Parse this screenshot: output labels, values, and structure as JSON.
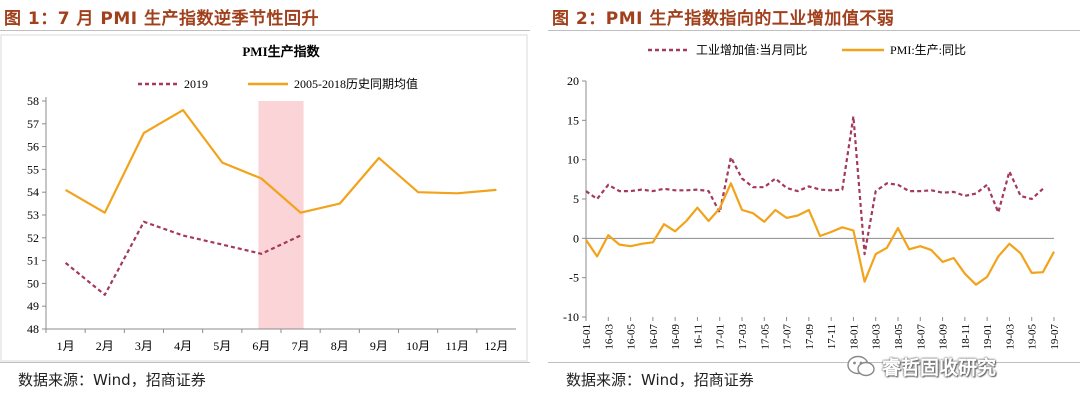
{
  "left": {
    "figure_title": "图 1：7 月 PMI 生产指数逆季节性回升",
    "source": "数据来源：Wind，招商证券"
  },
  "right": {
    "figure_title": "图 2：PMI 生产指数指向的工业增加值不弱",
    "source": "数据来源：Wind，招商证券"
  },
  "watermark": {
    "text": "睿哲固收研究",
    "icon": "wechat-icon"
  },
  "chart_data": [
    {
      "type": "line",
      "title": "PMI生产指数",
      "categories": [
        "1月",
        "2月",
        "3月",
        "4月",
        "5月",
        "6月",
        "7月",
        "8月",
        "9月",
        "10月",
        "11月",
        "12月"
      ],
      "ylim": [
        48,
        58
      ],
      "yticks": [
        "48",
        "49",
        "50",
        "51",
        "52",
        "53",
        "54",
        "55",
        "56",
        "57",
        "58"
      ],
      "grid": false,
      "legend": "top",
      "highlight_band": {
        "from": "6月",
        "to": "7月",
        "color": "#fbd4d8"
      },
      "series": [
        {
          "name": "2019",
          "color": "#a33a5a",
          "style": "dashed",
          "values": [
            50.9,
            49.5,
            52.7,
            52.1,
            51.7,
            51.3,
            52.1,
            null,
            null,
            null,
            null,
            null
          ]
        },
        {
          "name": "2005-2018历史同期均值",
          "color": "#f2a31b",
          "style": "solid",
          "values": [
            54.1,
            53.1,
            56.6,
            57.6,
            55.3,
            54.6,
            53.1,
            53.5,
            55.5,
            54.0,
            53.95,
            54.1
          ]
        }
      ]
    },
    {
      "type": "line",
      "title": "",
      "categories": [
        "16-01",
        "16-02",
        "16-03",
        "16-04",
        "16-05",
        "16-06",
        "16-07",
        "16-08",
        "16-09",
        "16-10",
        "16-11",
        "16-12",
        "17-01",
        "17-02",
        "17-03",
        "17-04",
        "17-05",
        "17-06",
        "17-07",
        "17-08",
        "17-09",
        "17-10",
        "17-11",
        "17-12",
        "18-01",
        "18-02",
        "18-03",
        "18-04",
        "18-05",
        "18-06",
        "18-07",
        "18-08",
        "18-09",
        "18-10",
        "18-11",
        "18-12",
        "19-01",
        "19-02",
        "19-03",
        "19-04",
        "19-05",
        "19-06",
        "19-07"
      ],
      "xtick_labels": [
        "16-01",
        "16-03",
        "16-05",
        "16-07",
        "16-09",
        "16-11",
        "17-01",
        "17-03",
        "17-05",
        "17-07",
        "17-09",
        "17-11",
        "18-01",
        "18-03",
        "18-05",
        "18-07",
        "18-09",
        "18-11",
        "19-01",
        "19-03",
        "19-05",
        "19-07"
      ],
      "ylim": [
        -10,
        20
      ],
      "yticks": [
        "-10",
        "-5",
        "0",
        "5",
        "10",
        "15",
        "20"
      ],
      "grid": false,
      "legend": "top",
      "series": [
        {
          "name": "工业增加值:当月同比",
          "color": "#a33a5a",
          "style": "dashed",
          "values": [
            6.0,
            5.0,
            6.8,
            6.0,
            6.0,
            6.2,
            6.0,
            6.3,
            6.1,
            6.1,
            6.2,
            6.0,
            3.3,
            10.3,
            7.6,
            6.5,
            6.5,
            7.6,
            6.4,
            6.0,
            6.6,
            6.2,
            6.1,
            6.2,
            15.5,
            -2.0,
            6.0,
            7.0,
            6.8,
            6.0,
            6.0,
            6.1,
            5.8,
            5.9,
            5.4,
            5.7,
            6.8,
            3.3,
            8.5,
            5.4,
            5.0,
            6.3,
            null
          ]
        },
        {
          "name": "PMI:生产:同比",
          "color": "#f2a31b",
          "style": "solid",
          "values": [
            -0.2,
            -2.3,
            0.4,
            -0.8,
            -1.0,
            -0.7,
            -0.5,
            1.8,
            0.9,
            2.2,
            3.9,
            2.2,
            3.8,
            7.0,
            3.6,
            3.2,
            2.1,
            3.6,
            2.6,
            2.9,
            3.6,
            0.3,
            0.8,
            1.4,
            1.0,
            -5.5,
            -2.0,
            -1.2,
            1.3,
            -1.4,
            -1.0,
            -1.5,
            -3.0,
            -2.5,
            -4.5,
            -5.9,
            -4.9,
            -2.3,
            -0.7,
            -1.9,
            -4.4,
            -4.3,
            -1.7
          ]
        }
      ]
    }
  ]
}
